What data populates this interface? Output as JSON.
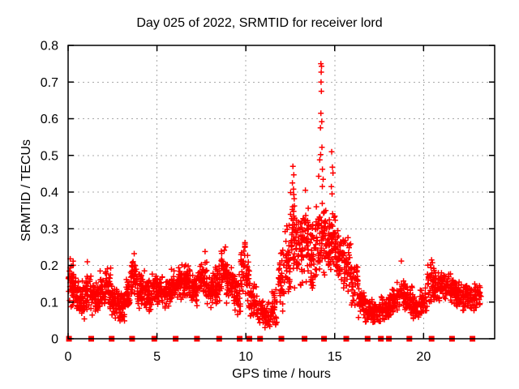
{
  "chart_data": {
    "type": "scatter",
    "title": "Day 025 of 2022, SRMTID for receiver lord",
    "xlabel": "GPS time / hours",
    "ylabel": "SRMTID / TECUs",
    "xlim": [
      0,
      24
    ],
    "ylim": [
      0,
      0.8
    ],
    "grid": true,
    "legend": "none",
    "x_ticks": [
      [
        0,
        "0"
      ],
      [
        5,
        "5"
      ],
      [
        10,
        "10"
      ],
      [
        15,
        "15"
      ],
      [
        20,
        "20"
      ]
    ],
    "y_ticks": [
      [
        0,
        "0"
      ],
      [
        0.1,
        "0.1"
      ],
      [
        0.2,
        "0.2"
      ],
      [
        0.3,
        "0.3"
      ],
      [
        0.4,
        "0.4"
      ],
      [
        0.5,
        "0.5"
      ],
      [
        0.6,
        "0.6"
      ],
      [
        0.7,
        "0.7"
      ],
      [
        0.8,
        "0.8"
      ]
    ],
    "style": {
      "marker_shape": "plus",
      "marker_color": "#ff0000",
      "zero_marker_shape": "filled-square",
      "grid_color": "#a8a8a8",
      "axis_color": "#000000",
      "text_color": "#000000",
      "background": "#ffffff"
    },
    "density_profile": [
      [
        0.0,
        0.3,
        0.08,
        0.22,
        36
      ],
      [
        0.3,
        0.6,
        0.07,
        0.19,
        36
      ],
      [
        0.6,
        1.0,
        0.05,
        0.16,
        44
      ],
      [
        1.0,
        1.3,
        0.07,
        0.18,
        34
      ],
      [
        1.3,
        1.8,
        0.06,
        0.16,
        52
      ],
      [
        1.8,
        2.1,
        0.07,
        0.19,
        34
      ],
      [
        2.1,
        2.4,
        0.08,
        0.2,
        34
      ],
      [
        2.4,
        2.8,
        0.05,
        0.15,
        44
      ],
      [
        2.8,
        3.2,
        0.04,
        0.14,
        44
      ],
      [
        3.2,
        3.5,
        0.07,
        0.17,
        34
      ],
      [
        3.5,
        3.9,
        0.1,
        0.23,
        44
      ],
      [
        3.9,
        4.3,
        0.08,
        0.19,
        44
      ],
      [
        4.3,
        4.7,
        0.07,
        0.17,
        44
      ],
      [
        4.7,
        5.3,
        0.09,
        0.18,
        64
      ],
      [
        5.3,
        5.8,
        0.08,
        0.17,
        52
      ],
      [
        5.8,
        6.2,
        0.09,
        0.19,
        44
      ],
      [
        6.2,
        6.6,
        0.1,
        0.21,
        44
      ],
      [
        6.6,
        6.9,
        0.11,
        0.22,
        34
      ],
      [
        6.9,
        7.3,
        0.08,
        0.19,
        44
      ],
      [
        7.3,
        7.8,
        0.1,
        0.24,
        52
      ],
      [
        7.8,
        8.2,
        0.08,
        0.2,
        44
      ],
      [
        8.2,
        8.6,
        0.09,
        0.21,
        44
      ],
      [
        8.6,
        8.9,
        0.11,
        0.26,
        34
      ],
      [
        8.9,
        9.3,
        0.09,
        0.21,
        44
      ],
      [
        9.3,
        9.7,
        0.06,
        0.18,
        44
      ],
      [
        9.7,
        10.2,
        0.07,
        0.26,
        52
      ],
      [
        10.2,
        10.6,
        0.04,
        0.16,
        38
      ],
      [
        10.6,
        11.0,
        0.03,
        0.12,
        34
      ],
      [
        11.0,
        11.4,
        0.02,
        0.1,
        30
      ],
      [
        11.4,
        11.8,
        0.03,
        0.14,
        34
      ],
      [
        11.8,
        12.2,
        0.05,
        0.26,
        40
      ],
      [
        12.2,
        12.5,
        0.09,
        0.32,
        36
      ],
      [
        12.5,
        12.8,
        0.12,
        0.43,
        40
      ],
      [
        12.8,
        13.2,
        0.12,
        0.35,
        44
      ],
      [
        13.2,
        13.6,
        0.14,
        0.37,
        44
      ],
      [
        13.6,
        13.9,
        0.12,
        0.32,
        36
      ],
      [
        13.9,
        14.2,
        0.14,
        0.38,
        36
      ],
      [
        14.2,
        14.5,
        0.15,
        0.42,
        40
      ],
      [
        14.5,
        14.8,
        0.17,
        0.33,
        36
      ],
      [
        14.8,
        15.1,
        0.17,
        0.36,
        40
      ],
      [
        15.1,
        15.5,
        0.14,
        0.32,
        44
      ],
      [
        15.5,
        15.9,
        0.12,
        0.28,
        40
      ],
      [
        15.9,
        16.3,
        0.08,
        0.22,
        36
      ],
      [
        16.3,
        16.7,
        0.05,
        0.15,
        36
      ],
      [
        16.7,
        17.2,
        0.04,
        0.12,
        44
      ],
      [
        17.2,
        17.6,
        0.04,
        0.1,
        36
      ],
      [
        17.6,
        18.1,
        0.05,
        0.12,
        44
      ],
      [
        18.1,
        18.5,
        0.06,
        0.14,
        36
      ],
      [
        18.5,
        19.0,
        0.07,
        0.17,
        44
      ],
      [
        19.0,
        19.4,
        0.06,
        0.15,
        36
      ],
      [
        19.4,
        19.8,
        0.05,
        0.12,
        36
      ],
      [
        19.8,
        20.2,
        0.06,
        0.15,
        36
      ],
      [
        20.2,
        20.6,
        0.09,
        0.21,
        40
      ],
      [
        20.6,
        21.0,
        0.1,
        0.19,
        40
      ],
      [
        21.0,
        21.4,
        0.1,
        0.19,
        40
      ],
      [
        21.4,
        21.8,
        0.09,
        0.18,
        40
      ],
      [
        21.8,
        22.2,
        0.08,
        0.17,
        40
      ],
      [
        22.2,
        22.6,
        0.07,
        0.16,
        40
      ],
      [
        22.6,
        23.0,
        0.06,
        0.16,
        36
      ],
      [
        23.0,
        23.25,
        0.08,
        0.15,
        18
      ]
    ],
    "outlier_points": [
      [
        0.12,
        0.218
      ],
      [
        1.08,
        0.21
      ],
      [
        3.72,
        0.232
      ],
      [
        9.95,
        0.262
      ],
      [
        12.62,
        0.425
      ],
      [
        12.65,
        0.47
      ],
      [
        12.7,
        0.447
      ],
      [
        12.68,
        0.408
      ],
      [
        13.35,
        0.405
      ],
      [
        14.1,
        0.443
      ],
      [
        14.16,
        0.488
      ],
      [
        14.2,
        0.575
      ],
      [
        14.21,
        0.502
      ],
      [
        14.22,
        0.615
      ],
      [
        14.22,
        0.75
      ],
      [
        14.23,
        0.7
      ],
      [
        14.24,
        0.727
      ],
      [
        14.25,
        0.675
      ],
      [
        14.26,
        0.743
      ],
      [
        14.27,
        0.592
      ],
      [
        14.28,
        0.522
      ],
      [
        14.31,
        0.462
      ],
      [
        14.35,
        0.435
      ],
      [
        14.81,
        0.415
      ],
      [
        14.83,
        0.51
      ],
      [
        14.85,
        0.395
      ],
      [
        14.87,
        0.468
      ],
      [
        14.9,
        0.452
      ],
      [
        18.75,
        0.212
      ],
      [
        20.45,
        0.215
      ]
    ],
    "zero_markers_hours": [
      0.05,
      1.3,
      2.45,
      3.6,
      4.85,
      6.05,
      7.25,
      8.5,
      9.65,
      10.2,
      10.8,
      12.0,
      13.3,
      14.4,
      15.65,
      16.85,
      17.6,
      18.05,
      19.2,
      20.45,
      21.6,
      22.75
    ]
  }
}
